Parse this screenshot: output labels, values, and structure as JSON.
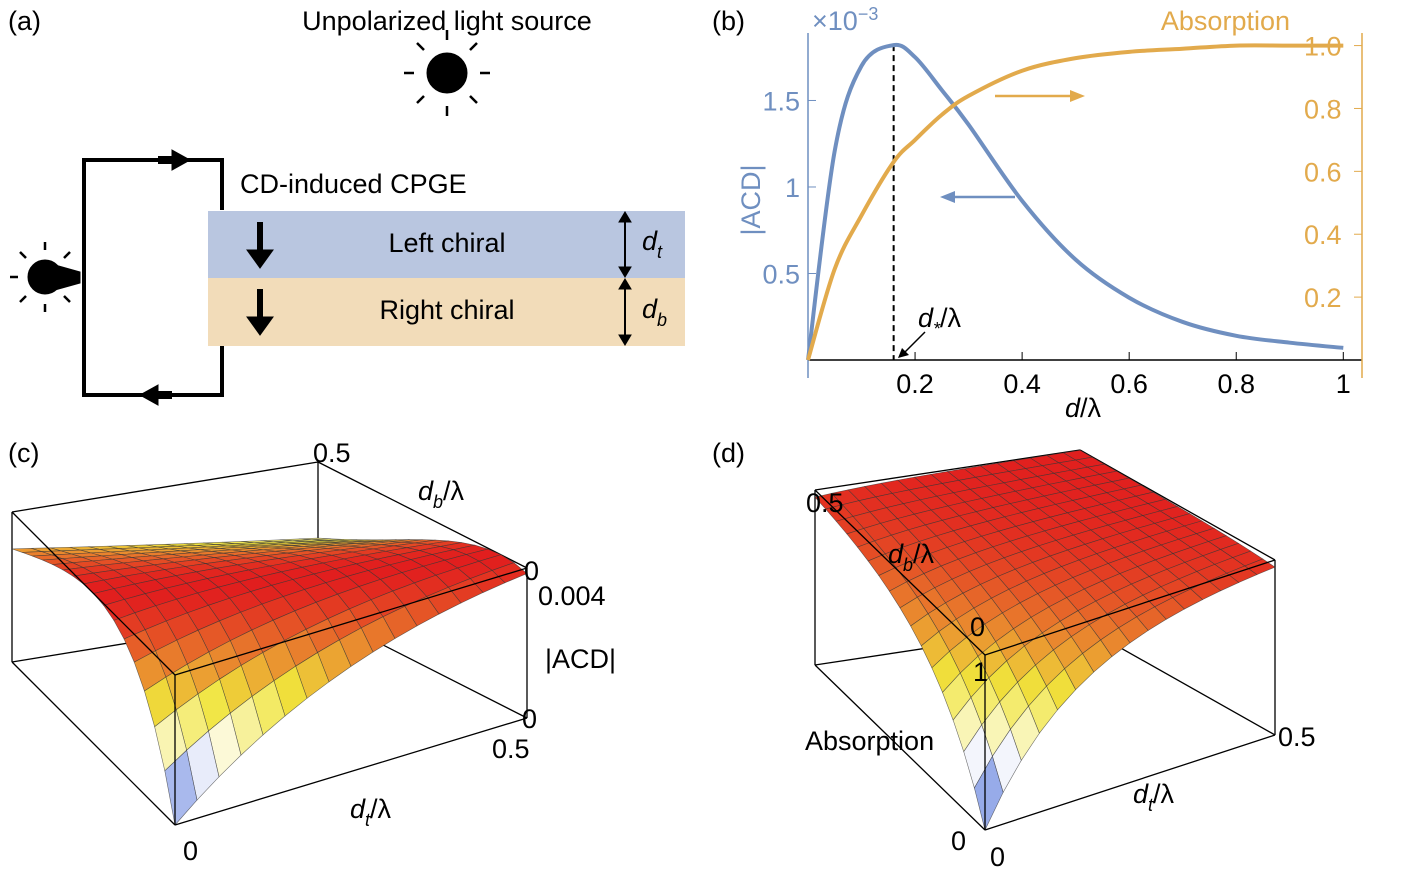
{
  "panel_a": {
    "label": "(a)",
    "source": "Unpolarized light source",
    "effect": "CD-induced CPGE",
    "layers": [
      {
        "name": "Left chiral",
        "thickness": {
          "symbol": "d",
          "subscript": "t"
        }
      },
      {
        "name": "Right chiral",
        "thickness": {
          "symbol": "d",
          "subscript": "b"
        }
      }
    ]
  },
  "chart_data": {
    "type": "line",
    "panel_label": "(b)",
    "x": [
      0,
      0.05,
      0.1,
      0.16,
      0.2,
      0.25,
      0.3,
      0.4,
      0.5,
      0.6,
      0.7,
      0.8,
      0.9,
      1.0
    ],
    "series": [
      {
        "name": "|ACD|",
        "color": "#6f8fc0",
        "axis": "y",
        "values": [
          0,
          1.21,
          1.7,
          1.82,
          1.75,
          1.56,
          1.36,
          0.92,
          0.58,
          0.36,
          0.22,
          0.14,
          0.1,
          0.07
        ]
      },
      {
        "name": "Absorption",
        "color": "#e2aa4c",
        "axis": "y2",
        "values": [
          0,
          0.29,
          0.46,
          0.63,
          0.7,
          0.78,
          0.84,
          0.92,
          0.96,
          0.98,
          0.99,
          1.0,
          1.0,
          1.0
        ]
      }
    ],
    "y_unit": {
      "base": "×10",
      "exponent": "−3"
    },
    "xlabel": {
      "symbol": "d",
      "rest": "/λ"
    },
    "annotation": {
      "symbol": "d",
      "subscript": "*",
      "rest": "/λ"
    },
    "peak_x": 0.16,
    "xlim": [
      0,
      1.02
    ],
    "xticks": [
      0.2,
      0.4,
      0.6,
      0.8,
      1
    ],
    "ylim": [
      0,
      1.89
    ],
    "yticks": [
      0.5,
      1,
      1.5
    ],
    "y2lim": [
      0,
      1.04
    ],
    "y2ticks": [
      0.2,
      0.4,
      0.6,
      0.8,
      {
        "value": 1,
        "label": "1.0"
      }
    ]
  },
  "panel_c": {
    "label": "(c)",
    "db_ticks": [
      "0.5",
      "0"
    ],
    "db_label": {
      "symbol": "d",
      "subscript": "b",
      "rest": "/λ"
    },
    "z_ticks": [
      "0.004",
      "0"
    ],
    "z_label": "|ACD|",
    "dt_ticks": [
      "0.5",
      "0"
    ],
    "dt_label": {
      "symbol": "d",
      "subscript": "t",
      "rest": "/λ"
    }
  },
  "panel_d": {
    "label": "(d)",
    "db_ticks": [
      "0.5",
      "0"
    ],
    "db_label": {
      "symbol": "d",
      "subscript": "b",
      "rest": "/λ"
    },
    "z_ticks": [
      "1",
      "0"
    ],
    "z_label": "Absorption",
    "dt_ticks": [
      "0.5",
      "0"
    ],
    "dt_label": {
      "symbol": "d",
      "subscript": "t",
      "rest": "/λ"
    }
  }
}
